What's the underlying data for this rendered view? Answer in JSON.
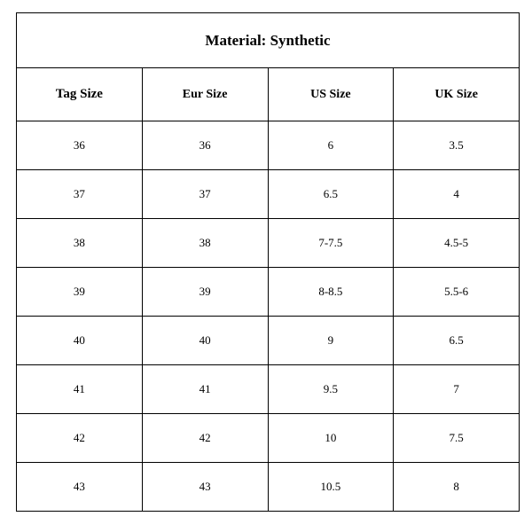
{
  "table": {
    "title": "Material: Synthetic",
    "columns": [
      "Tag Size",
      "Eur Size",
      "US Size",
      "UK Size"
    ],
    "rows": [
      [
        "36",
        "36",
        "6",
        "3.5"
      ],
      [
        "37",
        "37",
        "6.5",
        "4"
      ],
      [
        "38",
        "38",
        "7-7.5",
        "4.5-5"
      ],
      [
        "39",
        "39",
        "8-8.5",
        "5.5-6"
      ],
      [
        "40",
        "40",
        "9",
        "6.5"
      ],
      [
        "41",
        "41",
        "9.5",
        "7"
      ],
      [
        "42",
        "42",
        "10",
        "7.5"
      ],
      [
        "43",
        "43",
        "10.5",
        "8"
      ]
    ],
    "border_color": "#000000",
    "background_color": "#ffffff",
    "text_color": "#000000",
    "font_family": "Times New Roman",
    "title_fontsize": 17,
    "header_fontsize": 14,
    "tagheader_fontsize": 15,
    "cell_fontsize": 13,
    "title_row_height": 62,
    "header_row_height": 60,
    "data_row_height": 55,
    "col_count": 4
  }
}
